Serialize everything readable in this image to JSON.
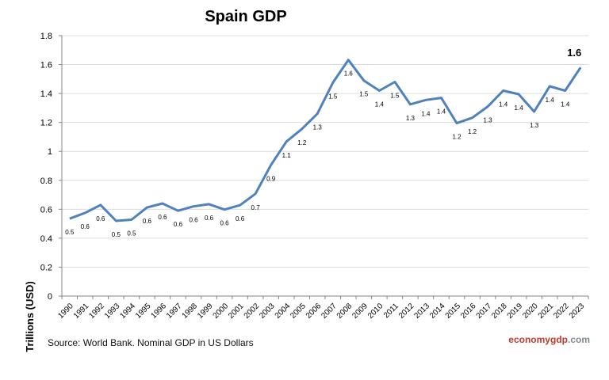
{
  "chart_data": {
    "type": "line",
    "title": "Spain GDP",
    "ylabel": "Trillions (USD)",
    "xlabel": "",
    "ylim": [
      0,
      1.8
    ],
    "yticks": [
      "0",
      "0.2",
      "0.4",
      "0.6",
      "0.8",
      "1",
      "1.2",
      "1.4",
      "1.6",
      "1.8"
    ],
    "ytick_values": [
      0,
      0.2,
      0.4,
      0.6,
      0.8,
      1.0,
      1.2,
      1.4,
      1.6,
      1.8
    ],
    "grid": true,
    "series": [
      {
        "color": "#4f81bd",
        "x": [
          "1990",
          "1991",
          "1992",
          "1993",
          "1994",
          "1995",
          "1996",
          "1997",
          "1998",
          "1999",
          "2000",
          "2001",
          "2002",
          "2003",
          "2004",
          "2005",
          "2006",
          "2007",
          "2008",
          "2009",
          "2010",
          "2011",
          "2012",
          "2013",
          "2014",
          "2015",
          "2016",
          "2017",
          "2018",
          "2019",
          "2020",
          "2021",
          "2022",
          "2023"
        ],
        "values": [
          0.535,
          0.575,
          0.63,
          0.52,
          0.528,
          0.612,
          0.64,
          0.59,
          0.62,
          0.635,
          0.598,
          0.628,
          0.707,
          0.905,
          1.068,
          1.155,
          1.26,
          1.475,
          1.632,
          1.49,
          1.42,
          1.48,
          1.325,
          1.355,
          1.37,
          1.195,
          1.232,
          1.31,
          1.42,
          1.395,
          1.275,
          1.45,
          1.42,
          1.58
        ],
        "labels": [
          "0.5",
          "0.6",
          "0.6",
          "0.5",
          "0.5",
          "0.6",
          "0.6",
          "0.6",
          "0.6",
          "0.6",
          "0.6",
          "0.6",
          "0.7",
          "0.9",
          "1.1",
          "1.2",
          "1.3",
          "1.5",
          "1.6",
          "1.5",
          "1.4",
          "1.5",
          "1.3",
          "1.4",
          "1.4",
          "1.2",
          "1.2",
          "1.3",
          "1.4",
          "1.4",
          "1.3",
          "1.4",
          "1.4",
          "1.6"
        ]
      }
    ]
  },
  "footer": {
    "source": "Source: World Bank. Nominal GDP in US Dollars",
    "brand_a": "economy",
    "brand_b": "gdp",
    "brand_c": ".com"
  }
}
